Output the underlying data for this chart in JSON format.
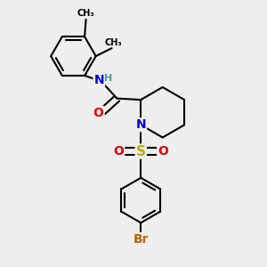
{
  "background_color": "#eeeeee",
  "bond_color": "#000000",
  "bond_width": 1.5,
  "atom_colors": {
    "N": "#0000cc",
    "O": "#dd0000",
    "S": "#bbaa00",
    "Br": "#bb6600",
    "H": "#4a9999",
    "C": "#000000"
  },
  "font_size": 9
}
